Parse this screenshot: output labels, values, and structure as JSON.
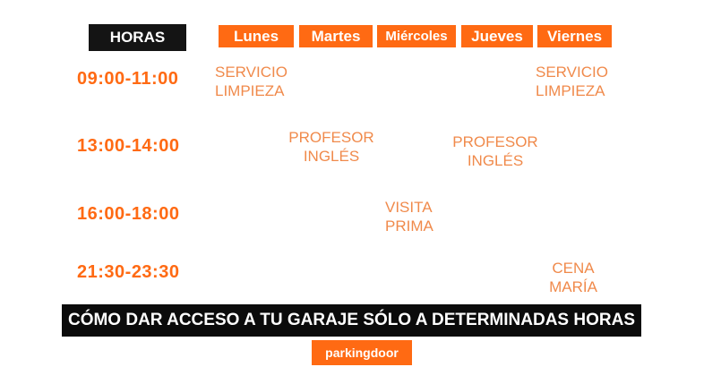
{
  "header": {
    "hours_label": "HORAS",
    "days": [
      "Lunes",
      "Martes",
      "Miércoles",
      "Jueves",
      "Viernes"
    ]
  },
  "rows": [
    {
      "time": "09:00-11:00"
    },
    {
      "time": "13:00-14:00"
    },
    {
      "time": "16:00-18:00"
    },
    {
      "time": "21:30-23:30"
    }
  ],
  "events": {
    "lunes_0900": [
      "SERVICIO",
      "LIMPIEZA"
    ],
    "viernes_0900": [
      "SERVICIO",
      "LIMPIEZA"
    ],
    "martes_1300": [
      "PROFESOR",
      "INGLÉS"
    ],
    "jueves_1300": [
      "PROFESOR",
      "INGLÉS"
    ],
    "miercoles_1600": [
      "VISITA",
      "PRIMA"
    ],
    "viernes_2130": [
      "CENA",
      "MARÍA"
    ]
  },
  "banner": "CÓMO DAR ACCESO A TU GARAJE SÓLO A DETERMINADAS HORAS",
  "brand": "parkingdoor",
  "colors": {
    "accent": "#ff6a13",
    "event_text": "#f08a4b",
    "dark": "#141414"
  }
}
